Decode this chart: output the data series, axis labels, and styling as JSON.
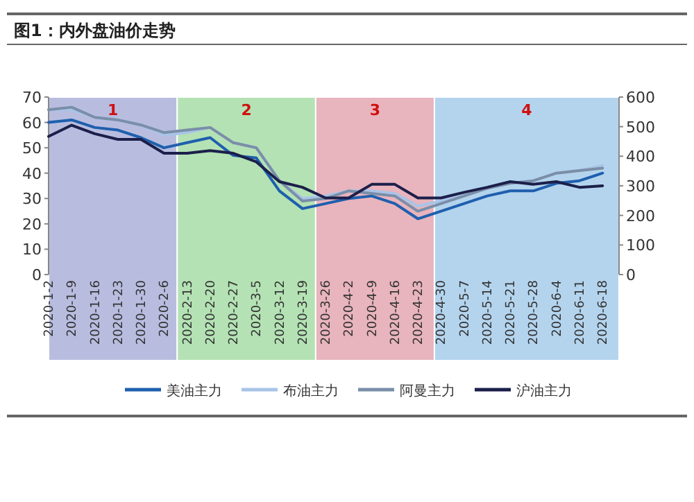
{
  "chart_data": {
    "type": "line",
    "title": "图1：内外盘油价走势",
    "x": [
      "2020-01-02",
      "2020-01-09",
      "2020-01-16",
      "2020-01-23",
      "2020-01-30",
      "2020-02-06",
      "2020-02-13",
      "2020-02-20",
      "2020-02-27",
      "2020-03-05",
      "2020-03-12",
      "2020-03-19",
      "2020-03-26",
      "2020-04-02",
      "2020-04-09",
      "2020-04-16",
      "2020-04-23",
      "2020-04-30",
      "2020-05-07",
      "2020-05-14",
      "2020-05-21",
      "2020-05-28",
      "2020-06-04",
      "2020-06-11",
      "2020-06-18"
    ],
    "series": [
      {
        "name": "美油主力",
        "color": "#1f5fae",
        "values": [
          60,
          61,
          58,
          57,
          54,
          50,
          52,
          54,
          47,
          46,
          33,
          26,
          28,
          30,
          31,
          28,
          22,
          25,
          28,
          31,
          33,
          33,
          36,
          37,
          40
        ]
      },
      {
        "name": "布油主力",
        "color": "#a9c4e8",
        "values": [
          65,
          65,
          62,
          61,
          59,
          55,
          56,
          58,
          52,
          50,
          37,
          30,
          31,
          33,
          33,
          32,
          27,
          29,
          32,
          34,
          36,
          37,
          40,
          41,
          43
        ]
      },
      {
        "name": "阿曼主力",
        "color": "#7a8ea8",
        "values": [
          65,
          66,
          62,
          61,
          59,
          56,
          57,
          58,
          52,
          50,
          37,
          29,
          30,
          33,
          32,
          31,
          25,
          28,
          31,
          34,
          36,
          37,
          40,
          41,
          42
        ]
      },
      {
        "name": "沪油主力",
        "color": "#1c1f4a",
        "axis": "y2",
        "values": [
          467,
          505,
          476,
          457,
          457,
          410,
          410,
          419,
          410,
          381,
          314,
          295,
          259,
          259,
          305,
          305,
          259,
          259,
          278,
          295,
          314,
          305,
          314,
          295,
          300
        ]
      }
    ],
    "xlim": [
      "2020-01-02",
      "2020-06-23"
    ],
    "xticks": [
      {
        "value": "2020-01-02",
        "label": "2020-1-2"
      },
      {
        "value": "2020-01-09",
        "label": "2020-1-9"
      },
      {
        "value": "2020-01-16",
        "label": "2020-1-16"
      },
      {
        "value": "2020-01-23",
        "label": "2020-1-23"
      },
      {
        "value": "2020-01-30",
        "label": "2020-1-30"
      },
      {
        "value": "2020-02-06",
        "label": "2020-2-6"
      },
      {
        "value": "2020-02-13",
        "label": "2020-2-13"
      },
      {
        "value": "2020-02-20",
        "label": "2020-2-20"
      },
      {
        "value": "2020-02-27",
        "label": "2020-2-27"
      },
      {
        "value": "2020-03-05",
        "label": "2020-3-5"
      },
      {
        "value": "2020-03-12",
        "label": "2020-3-12"
      },
      {
        "value": "2020-03-19",
        "label": "2020-3-19"
      },
      {
        "value": "2020-03-26",
        "label": "2020-3-26"
      },
      {
        "value": "2020-04-02",
        "label": "2020-4-2"
      },
      {
        "value": "2020-04-09",
        "label": "2020-4-9"
      },
      {
        "value": "2020-04-16",
        "label": "2020-4-16"
      },
      {
        "value": "2020-04-23",
        "label": "2020-4-23"
      },
      {
        "value": "2020-04-30",
        "label": "2020-4-30"
      },
      {
        "value": "2020-05-07",
        "label": "2020-5-7"
      },
      {
        "value": "2020-05-14",
        "label": "2020-5-14"
      },
      {
        "value": "2020-05-21",
        "label": "2020-5-21"
      },
      {
        "value": "2020-05-28",
        "label": "2020-5-28"
      },
      {
        "value": "2020-06-04",
        "label": "2020-6-4"
      },
      {
        "value": "2020-06-11",
        "label": "2020-6-11"
      },
      {
        "value": "2020-06-18",
        "label": "2020-6-18"
      }
    ],
    "ylim": [
      0,
      70
    ],
    "yticks": [
      0,
      10,
      20,
      30,
      40,
      50,
      60,
      70
    ],
    "y2lim": [
      0,
      600
    ],
    "y2ticks": [
      0,
      100,
      200,
      300,
      400,
      500,
      600
    ],
    "bands": [
      {
        "axis": "x",
        "from": "2020-01-02",
        "to": "2020-02-10",
        "label": "1",
        "color": "#b8bde0"
      },
      {
        "axis": "x",
        "from": "2020-02-10",
        "to": "2020-03-23",
        "label": "2",
        "color": "#b4e2b4"
      },
      {
        "axis": "x",
        "from": "2020-03-23",
        "to": "2020-04-28",
        "label": "3",
        "color": "#e8b4bd"
      },
      {
        "axis": "x",
        "from": "2020-04-28",
        "to": "2020-06-23",
        "label": "4",
        "color": "#b4d4ee"
      }
    ],
    "legend": "bottom",
    "grid": false
  }
}
